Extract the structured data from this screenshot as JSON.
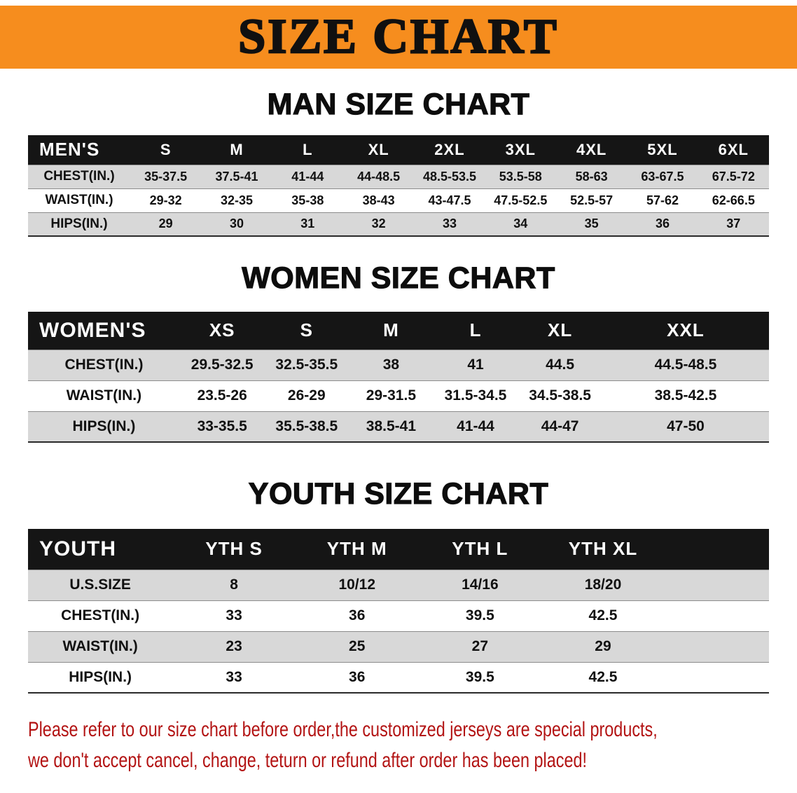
{
  "banner": {
    "title": "SIZE CHART"
  },
  "colors": {
    "banner-bg": "#f68d1e",
    "table-header-bg": "#151515",
    "row-gray": "#d8d8d8",
    "row-white": "#ffffff",
    "disclaimer-red": "#b31414"
  },
  "men": {
    "title": "MAN SIZE CHART",
    "table": {
      "header": [
        "MEN'S",
        "S",
        "M",
        "L",
        "XL",
        "2XL",
        "3XL",
        "4XL",
        "5XL",
        "6XL"
      ],
      "rows": [
        [
          "CHEST(IN.)",
          "35-37.5",
          "37.5-41",
          "41-44",
          "44-48.5",
          "48.5-53.5",
          "53.5-58",
          "58-63",
          "63-67.5",
          "67.5-72"
        ],
        [
          "WAIST(IN.)",
          "29-32",
          "32-35",
          "35-38",
          "38-43",
          "43-47.5",
          "47.5-52.5",
          "52.5-57",
          "57-62",
          "62-66.5"
        ],
        [
          "HIPS(IN.)",
          "29",
          "30",
          "31",
          "32",
          "33",
          "34",
          "35",
          "36",
          "37"
        ]
      ]
    }
  },
  "women": {
    "title": "WOMEN SIZE CHART",
    "table": {
      "header": [
        "WOMEN'S",
        "XS",
        "S",
        "M",
        "L",
        "XL",
        "XXL"
      ],
      "rows": [
        [
          "CHEST(IN.)",
          "29.5-32.5",
          "32.5-35.5",
          "38",
          "41",
          "44.5",
          "44.5-48.5"
        ],
        [
          "WAIST(IN.)",
          "23.5-26",
          "26-29",
          "29-31.5",
          "31.5-34.5",
          "34.5-38.5",
          "38.5-42.5"
        ],
        [
          "HIPS(IN.)",
          "33-35.5",
          "35.5-38.5",
          "38.5-41",
          "41-44",
          "44-47",
          "47-50"
        ]
      ]
    }
  },
  "youth": {
    "title": "YOUTH SIZE CHART",
    "table": {
      "header": [
        "YOUTH",
        "YTH S",
        "YTH M",
        "YTH L",
        "YTH XL"
      ],
      "rows": [
        [
          "U.S.SIZE",
          "8",
          "10/12",
          "14/16",
          "18/20"
        ],
        [
          "CHEST(IN.)",
          "33",
          "36",
          "39.5",
          "42.5"
        ],
        [
          "WAIST(IN.)",
          "23",
          "25",
          "27",
          "29"
        ],
        [
          "HIPS(IN.)",
          "33",
          "36",
          "39.5",
          "42.5"
        ]
      ]
    }
  },
  "disclaimer": {
    "line1": "Please refer to our size chart before order,the customized jerseys are special products,",
    "line2": "we don't accept cancel, change, teturn or refund after order has been placed!"
  }
}
